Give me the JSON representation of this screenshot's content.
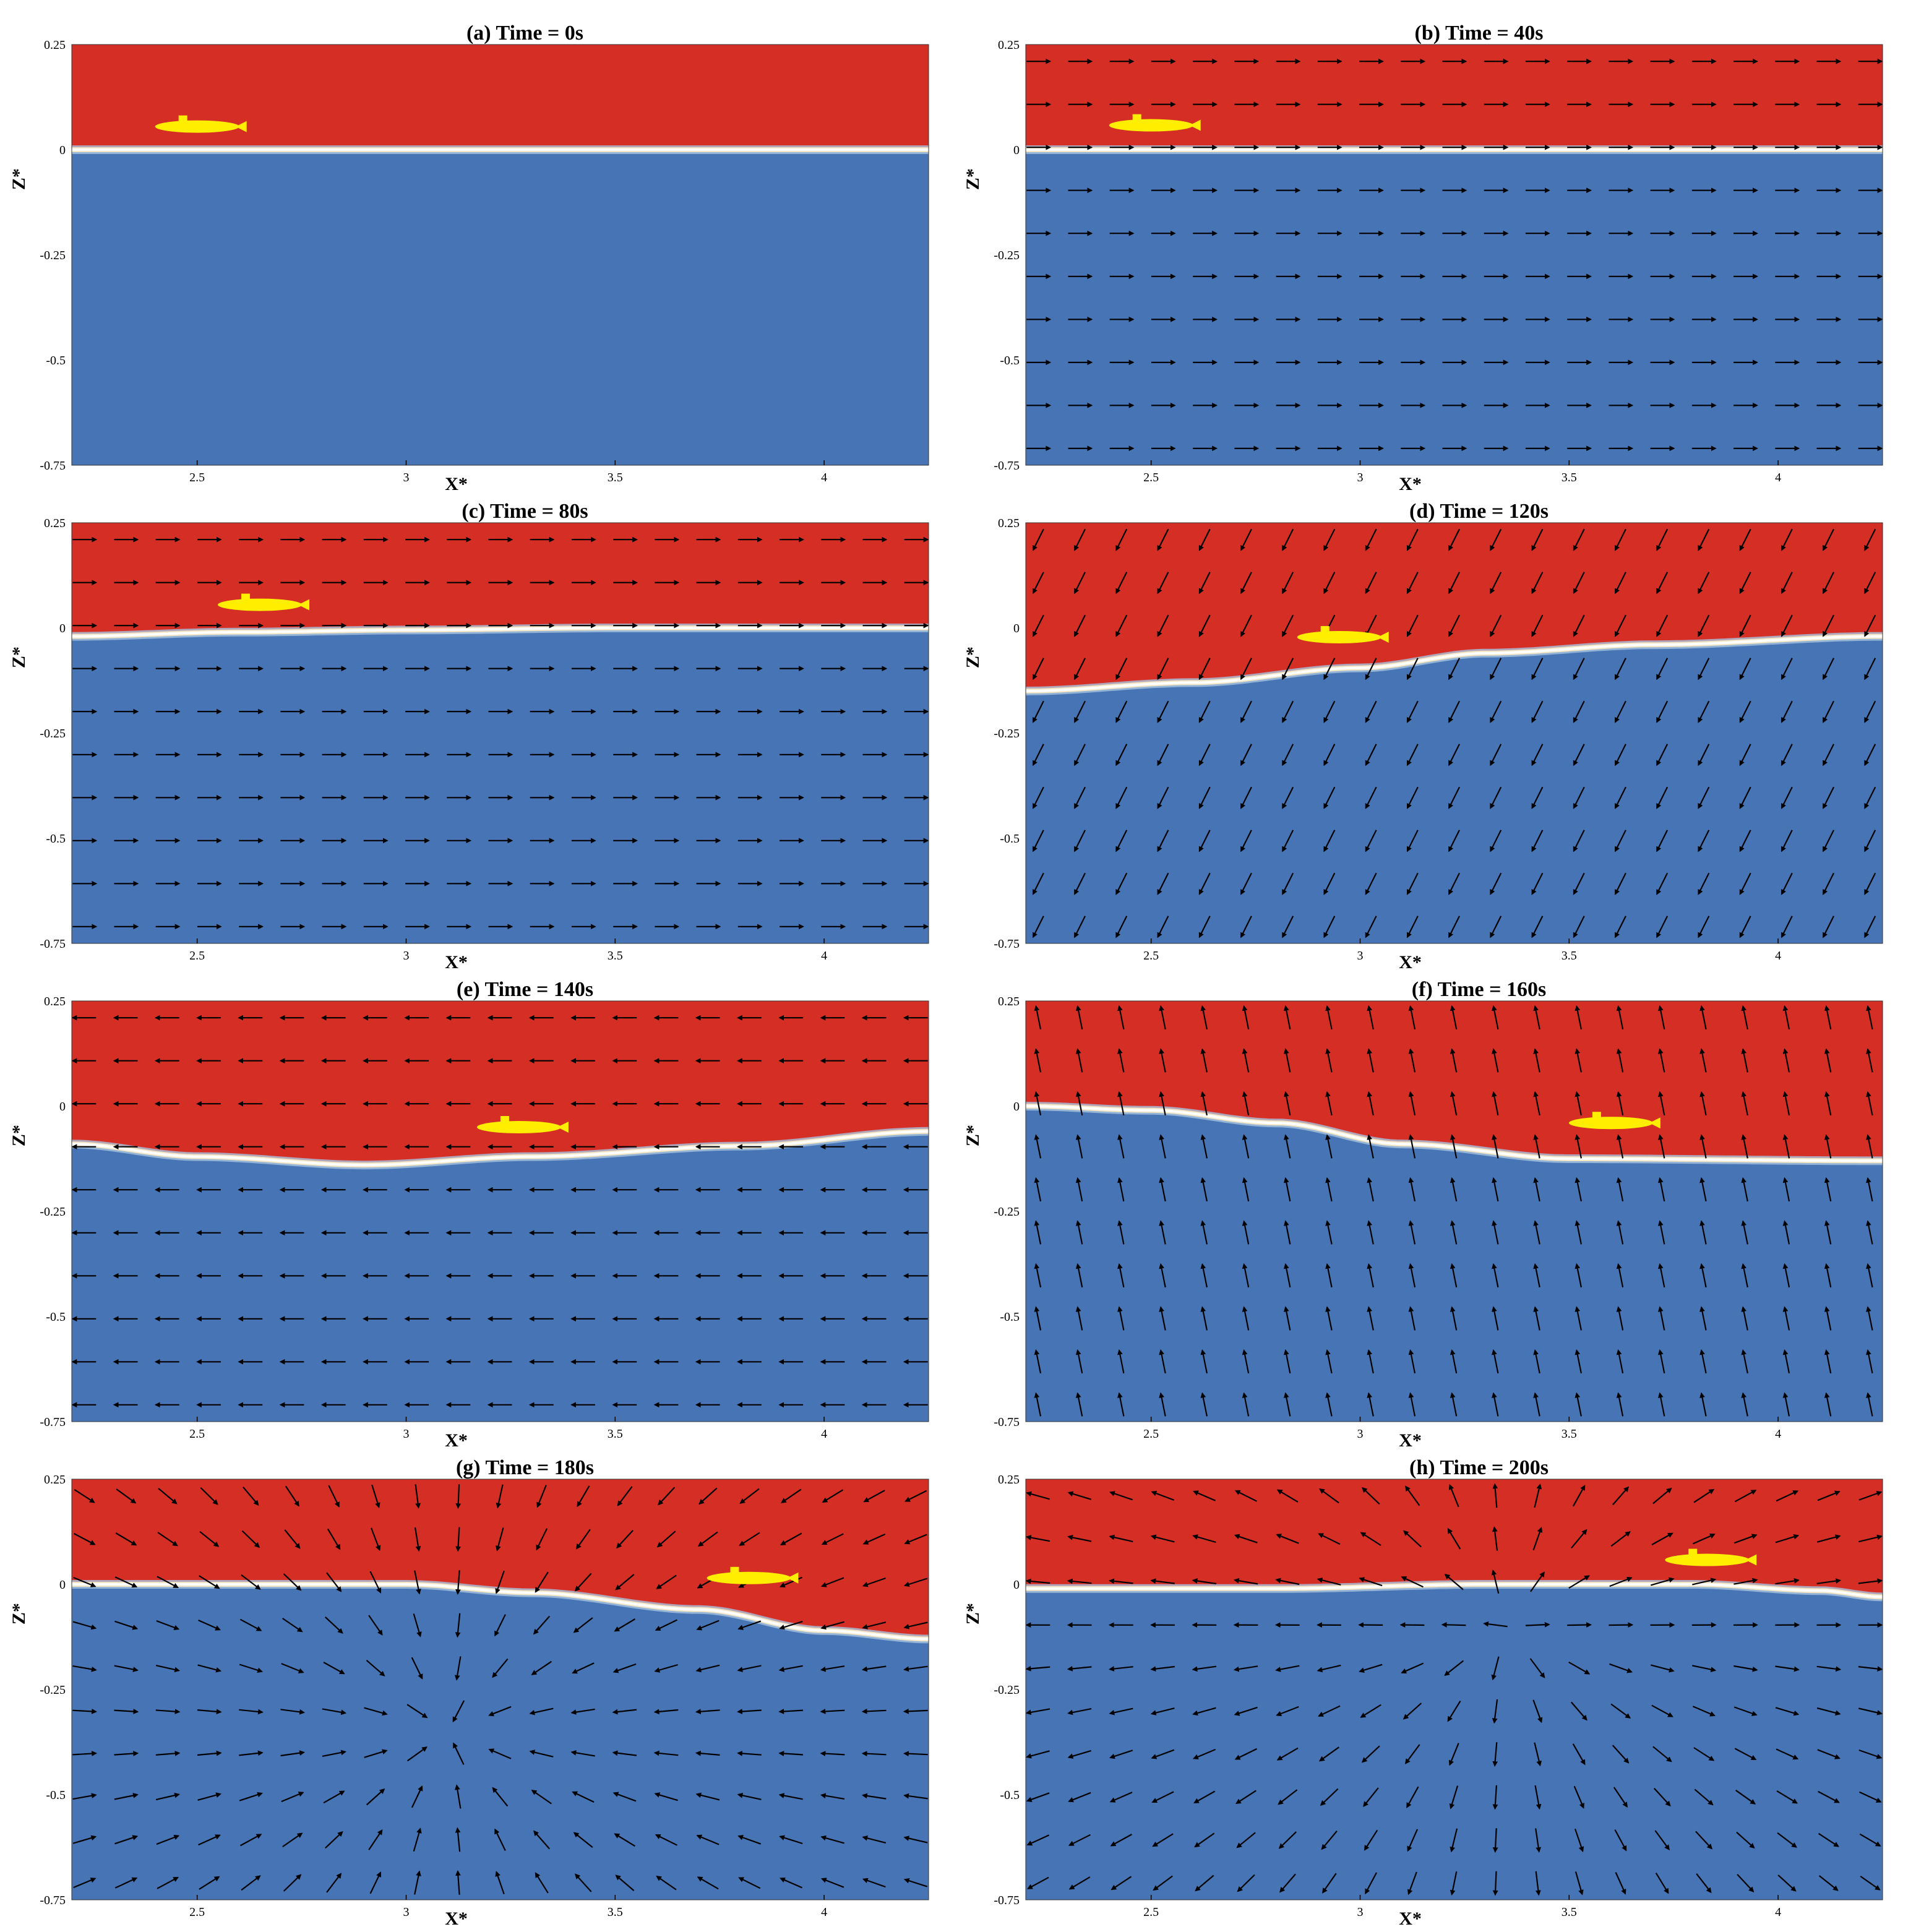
{
  "chart_data": {
    "type": "vector-field",
    "shared_axes": {
      "xlabel": "X*",
      "ylabel": "Z*",
      "xlim": [
        2.2,
        4.25
      ],
      "ylim": [
        -0.75,
        0.25
      ],
      "xticks": [
        "2.5",
        "3",
        "3.5",
        "4"
      ],
      "yticks": [
        "0.25",
        "0",
        "-0.25",
        "-0.5",
        "-0.75"
      ],
      "grid": false
    },
    "colors": {
      "air": "#d42e25",
      "water": "#4774b4",
      "interface": "#ffffff",
      "submarine": "#ffee00",
      "arrow": "#000000"
    },
    "panels": [
      {
        "title": "(a) Time = 0s",
        "time_s": 0,
        "interface": [
          [
            2.2,
            0.0
          ],
          [
            4.25,
            0.0
          ]
        ],
        "submarine": {
          "x": 2.5,
          "z": 0.055
        },
        "field": {
          "uniform": null
        }
      },
      {
        "title": "(b) Time = 40s",
        "time_s": 40,
        "interface": [
          [
            2.2,
            0.0
          ],
          [
            4.25,
            0.0
          ]
        ],
        "submarine": {
          "x": 2.5,
          "z": 0.058
        },
        "field": {
          "uniform": [
            1,
            0
          ]
        }
      },
      {
        "title": "(c) Time = 80s",
        "time_s": 80,
        "interface": [
          [
            2.2,
            -0.02
          ],
          [
            2.6,
            -0.01
          ],
          [
            3.0,
            -0.005
          ],
          [
            3.5,
            0.0
          ],
          [
            4.25,
            0.0
          ]
        ],
        "submarine": {
          "x": 2.65,
          "z": 0.055
        },
        "field": {
          "uniform": [
            1,
            0
          ]
        }
      },
      {
        "title": "(d) Time = 120s",
        "time_s": 120,
        "interface": [
          [
            2.2,
            -0.15
          ],
          [
            2.6,
            -0.13
          ],
          [
            3.0,
            -0.095
          ],
          [
            3.3,
            -0.06
          ],
          [
            3.7,
            -0.04
          ],
          [
            4.25,
            -0.02
          ]
        ],
        "submarine": {
          "x": 2.95,
          "z": -0.022
        },
        "field": {
          "uniform": [
            -0.5,
            -1
          ]
        }
      },
      {
        "title": "(e) Time = 140s",
        "time_s": 140,
        "interface": [
          [
            2.2,
            -0.09
          ],
          [
            2.5,
            -0.12
          ],
          [
            2.9,
            -0.14
          ],
          [
            3.3,
            -0.12
          ],
          [
            3.8,
            -0.095
          ],
          [
            4.25,
            -0.06
          ]
        ],
        "submarine": {
          "x": 3.27,
          "z": -0.05
        },
        "field": {
          "uniform": [
            -1,
            0
          ]
        }
      },
      {
        "title": "(f) Time = 160s",
        "time_s": 160,
        "interface": [
          [
            2.2,
            0.0
          ],
          [
            2.5,
            -0.01
          ],
          [
            2.8,
            -0.04
          ],
          [
            3.1,
            -0.09
          ],
          [
            3.5,
            -0.125
          ],
          [
            4.25,
            -0.13
          ]
        ],
        "submarine": {
          "x": 3.6,
          "z": -0.04
        },
        "field": {
          "uniform": [
            -0.2,
            1
          ]
        }
      },
      {
        "title": "(g) Time = 180s",
        "time_s": 180,
        "interface": [
          [
            2.2,
            0.0
          ],
          [
            2.6,
            0.0
          ],
          [
            3.0,
            0.0
          ],
          [
            3.3,
            -0.02
          ],
          [
            3.7,
            -0.06
          ],
          [
            4.0,
            -0.11
          ],
          [
            4.25,
            -0.13
          ]
        ],
        "submarine": {
          "x": 3.82,
          "z": 0.015
        },
        "field": {
          "sink": [
            3.1,
            -0.35
          ]
        }
      },
      {
        "title": "(h) Time = 200s",
        "time_s": 200,
        "interface": [
          [
            2.2,
            -0.01
          ],
          [
            2.8,
            -0.01
          ],
          [
            3.3,
            0.0
          ],
          [
            3.8,
            0.0
          ],
          [
            4.1,
            -0.015
          ],
          [
            4.25,
            -0.03
          ]
        ],
        "submarine": {
          "x": 3.83,
          "z": 0.058
        },
        "field": {
          "source": [
            3.35,
            -0.1
          ]
        }
      }
    ]
  }
}
